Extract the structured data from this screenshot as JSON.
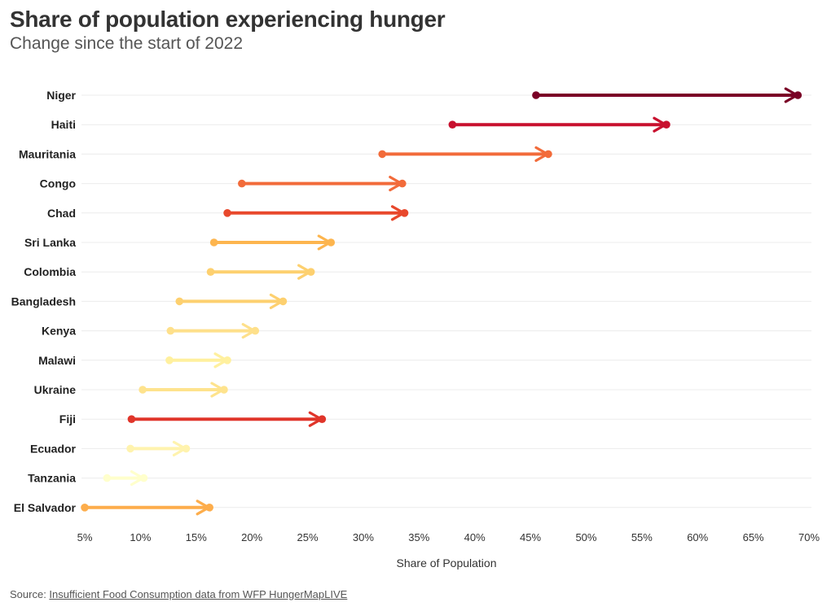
{
  "title": "Share of population experiencing hunger",
  "subtitle": "Change since the start of 2022",
  "source": {
    "prefix": "Source: ",
    "link_text": "Insufficient Food Consumption data from WFP HungerMapLIVE"
  },
  "chart_data": {
    "type": "dumbbell-arrow",
    "xlabel": "Share of Population",
    "xlim": [
      5,
      70
    ],
    "xticks": [
      5,
      10,
      15,
      20,
      25,
      30,
      35,
      40,
      45,
      50,
      55,
      60,
      65,
      70
    ],
    "xtick_labels": [
      "5%",
      "10%",
      "15%",
      "20%",
      "25%",
      "30%",
      "35%",
      "40%",
      "45%",
      "50%",
      "55%",
      "60%",
      "65%",
      "70%"
    ],
    "grid": "horizontal",
    "rows": [
      {
        "country": "Niger",
        "start": 45.5,
        "end": 69.0,
        "color": "#7a0026"
      },
      {
        "country": "Haiti",
        "start": 38.0,
        "end": 57.2,
        "color": "#c8102e"
      },
      {
        "country": "Mauritania",
        "start": 31.7,
        "end": 46.6,
        "color": "#f26b3a"
      },
      {
        "country": "Congo",
        "start": 19.1,
        "end": 33.5,
        "color": "#f26b3a"
      },
      {
        "country": "Chad",
        "start": 17.8,
        "end": 33.7,
        "color": "#e8482c"
      },
      {
        "country": "Sri Lanka",
        "start": 16.6,
        "end": 27.1,
        "color": "#fdb54e"
      },
      {
        "country": "Colombia",
        "start": 16.3,
        "end": 25.3,
        "color": "#fdd06f"
      },
      {
        "country": "Bangladesh",
        "start": 13.5,
        "end": 22.8,
        "color": "#fdd06f"
      },
      {
        "country": "Kenya",
        "start": 12.7,
        "end": 20.3,
        "color": "#fee08b"
      },
      {
        "country": "Malawi",
        "start": 12.6,
        "end": 17.8,
        "color": "#fff09e"
      },
      {
        "country": "Ukraine",
        "start": 10.2,
        "end": 17.5,
        "color": "#fee38d"
      },
      {
        "country": "Fiji",
        "start": 9.2,
        "end": 26.3,
        "color": "#e0352a"
      },
      {
        "country": "Ecuador",
        "start": 9.1,
        "end": 14.1,
        "color": "#fff3ae"
      },
      {
        "country": "Tanzania",
        "start": 7.0,
        "end": 10.3,
        "color": "#ffffcc"
      },
      {
        "country": "El Salvador",
        "start": 5.0,
        "end": 16.2,
        "color": "#fdad4b"
      }
    ]
  }
}
